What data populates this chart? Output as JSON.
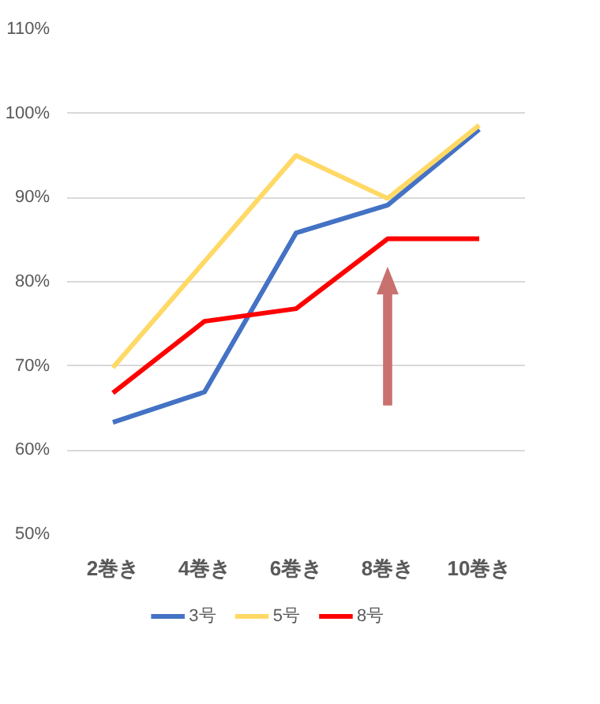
{
  "chart_data": {
    "type": "line",
    "categories": [
      "2巻き",
      "4巻き",
      "6巻き",
      "8巻き",
      "10巻き"
    ],
    "series": [
      {
        "name": "3号",
        "color": "#4472c4",
        "values": [
          63.3,
          66.9,
          85.8,
          89.1,
          98.1
        ]
      },
      {
        "name": "5号",
        "color": "#ffd966",
        "values": [
          69.8,
          82.4,
          95.0,
          89.9,
          98.6
        ]
      },
      {
        "name": "8号",
        "color": "#ff0000",
        "values": [
          66.8,
          75.3,
          76.8,
          85.1,
          85.1
        ]
      }
    ],
    "ylim": [
      50,
      110
    ],
    "yticks": [
      {
        "value": 50,
        "label": "50%"
      },
      {
        "value": 60,
        "label": "60%"
      },
      {
        "value": 70,
        "label": "70%"
      },
      {
        "value": 80,
        "label": "80%"
      },
      {
        "value": 90,
        "label": "90%"
      },
      {
        "value": 100,
        "label": "100%"
      },
      {
        "value": 110,
        "label": "110%"
      }
    ],
    "grid": "y",
    "legend": "bottom",
    "marker": "none",
    "line_style": "solid"
  }
}
